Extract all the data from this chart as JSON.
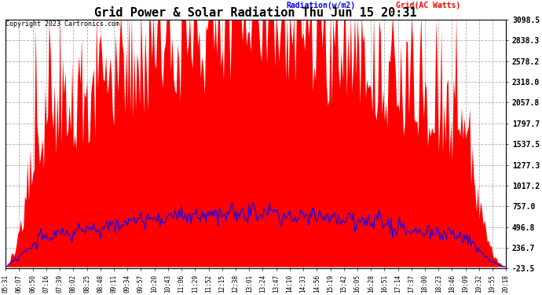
{
  "title": "Grid Power & Solar Radiation Thu Jun 15 20:31",
  "copyright": "Copyright 2023 Cartronics.com",
  "legend_radiation": "Radiation(w/m2)",
  "legend_grid": "Grid(AC Watts)",
  "radiation_color": "blue",
  "grid_color": "red",
  "background_color": "#ffffff",
  "plot_bg_color": "#ffffff",
  "grid_line_color": "#999999",
  "yticks": [
    3098.5,
    2838.3,
    2578.2,
    2318.0,
    2057.8,
    1797.7,
    1537.5,
    1277.3,
    1017.2,
    757.0,
    496.8,
    236.7,
    -23.5
  ],
  "ymin": -23.5,
  "ymax": 3098.5,
  "x_labels": [
    "05:31",
    "06:07",
    "06:50",
    "07:16",
    "07:39",
    "08:02",
    "08:25",
    "08:48",
    "09:11",
    "09:34",
    "09:57",
    "10:20",
    "10:43",
    "11:06",
    "11:29",
    "11:52",
    "12:15",
    "12:38",
    "13:01",
    "13:24",
    "13:47",
    "14:10",
    "14:33",
    "14:56",
    "15:19",
    "15:42",
    "16:05",
    "16:28",
    "16:51",
    "17:14",
    "17:37",
    "18:00",
    "18:23",
    "18:46",
    "19:09",
    "19:32",
    "19:55",
    "20:18"
  ]
}
